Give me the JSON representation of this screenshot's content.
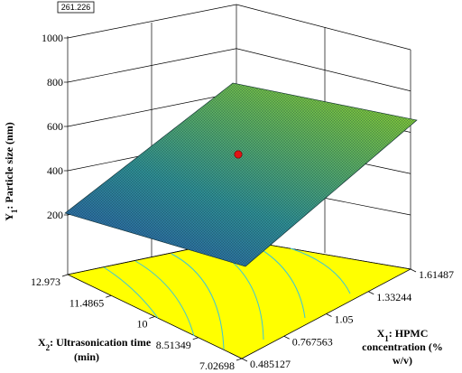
{
  "chart_data": {
    "type": "surface3d",
    "title": "",
    "value_readout": "261.226",
    "z_axis": {
      "label_main": "Y",
      "label_sub": "1",
      "label_rest": ": Particle size (nm)",
      "ticks": [
        "200",
        "400",
        "600",
        "800",
        "1000"
      ],
      "range": [
        200,
        1000
      ]
    },
    "x1_axis": {
      "label_line1_main": "X",
      "label_line1_sub": "1",
      "label_line1_rest": ": HPMC",
      "label_line2": "concentration (%",
      "label_line3": "w/v)",
      "ticks": [
        "0.485127",
        "0.767563",
        "1.05",
        "1.33244",
        "1.61487"
      ],
      "range": [
        0.485127,
        1.61487
      ]
    },
    "x2_axis": {
      "label_line1_main": "X",
      "label_line1_sub": "2",
      "label_line1_rest": ": Ultrasonication time",
      "label_line2": "(min)",
      "ticks": [
        "7.02698",
        "8.51349",
        "10",
        "11.4865",
        "12.973"
      ],
      "range": [
        7.02698,
        12.973
      ]
    },
    "surface": {
      "description_corners_nm": {
        "x1_low_x2_low": 330,
        "x1_low_x2_high": 245,
        "x1_high_x2_low": 630,
        "x1_high_x2_high": 700
      },
      "design_point": {
        "x1": 1.05,
        "x2": 10,
        "y": 520
      }
    },
    "colors": {
      "floor": "#ffff00",
      "contour": "#3fc6d6",
      "surface_low": "#2c5cb0",
      "surface_high": "#7cc23a",
      "design_point": "#e01515"
    }
  }
}
